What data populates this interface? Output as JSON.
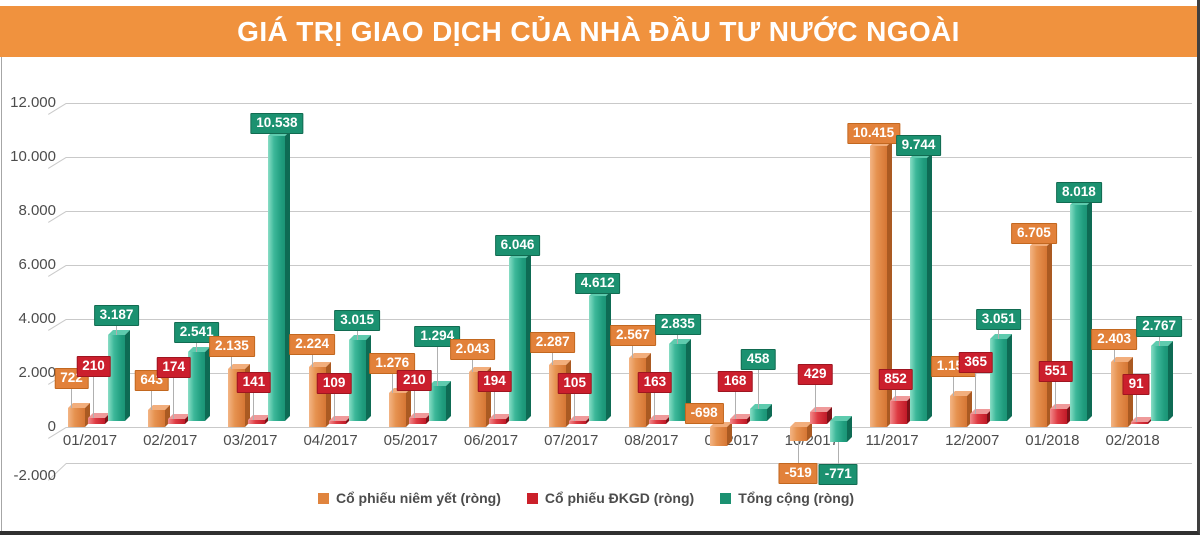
{
  "title": "GIÁ TRỊ GIAO DỊCH CỦA NHÀ ĐẦU TƯ NƯỚC NGOÀI",
  "banner_color": "#f0923e",
  "chart_data": {
    "type": "bar",
    "title": "GIÁ TRỊ GIAO DỊCH CỦA NHÀ ĐẦU TƯ NƯỚC NGOÀI",
    "categories": [
      "01/2017",
      "02/2017",
      "03/2017",
      "04/2017",
      "05/2017",
      "06/2017",
      "07/2017",
      "08/2017",
      "09/2017",
      "10/2017",
      "11/2017",
      "12/2007",
      "01/2018",
      "02/2018"
    ],
    "series": [
      {
        "name": "Cổ phiếu niêm yết (ròng)",
        "color": "#e0843e",
        "values": [
          722,
          643,
          2135,
          2224,
          1276,
          2043,
          2287,
          2567,
          -698,
          -519,
          10415,
          1154,
          6705,
          2403
        ],
        "labels": [
          "722",
          "643",
          "2.135",
          "2.224",
          "1.276",
          "2.043",
          "2.287",
          "2.567",
          "-698",
          "-519",
          "10.415",
          "1.154",
          "6.705",
          "2.403"
        ]
      },
      {
        "name": "Cổ phiếu ĐKGD (ròng)",
        "color": "#cb202a",
        "values": [
          210,
          174,
          141,
          109,
          210,
          194,
          105,
          163,
          168,
          429,
          852,
          365,
          551,
          91
        ],
        "labels": [
          "210",
          "174",
          "141",
          "109",
          "210",
          "194",
          "105",
          "163",
          "168",
          "429",
          "852",
          "365",
          "551",
          "91"
        ]
      },
      {
        "name": "Tổng cộng (ròng)",
        "color": "#1b9171",
        "values": [
          3187,
          2541,
          10538,
          3015,
          1294,
          6046,
          4612,
          2835,
          458,
          -771,
          9744,
          3051,
          8018,
          2767
        ],
        "labels": [
          "3.187",
          "2.541",
          "10.538",
          "3.015",
          "1.294",
          "6.046",
          "4.612",
          "2.835",
          "458",
          "-771",
          "9.744",
          "3.051",
          "8.018",
          "2.767"
        ]
      }
    ],
    "y_ticks": [
      {
        "label": "12.000",
        "value": 12000
      },
      {
        "label": "10.000",
        "value": 10000
      },
      {
        "label": "8.000",
        "value": 8000
      },
      {
        "label": "6.000",
        "value": 6000
      },
      {
        "label": "4.000",
        "value": 4000
      },
      {
        "label": "2.000",
        "value": 2000
      },
      {
        "label": "0",
        "value": 0
      },
      {
        "label": "-2.000",
        "value": -2000
      }
    ],
    "ylim": [
      -2000,
      12000
    ],
    "grid": true,
    "legend_position": "bottom"
  }
}
